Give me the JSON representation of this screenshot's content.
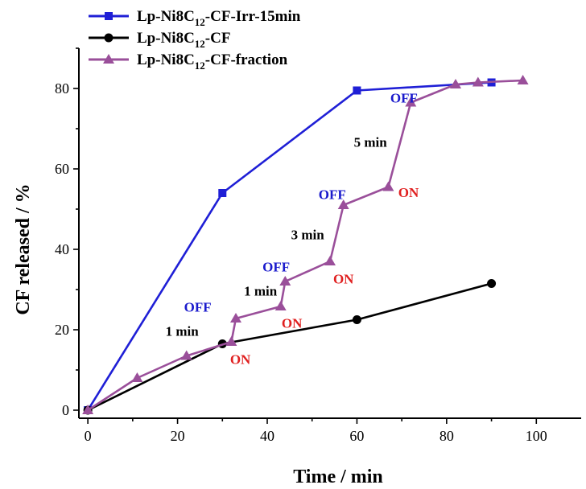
{
  "chart_data": {
    "type": "line",
    "xlabel": "Time / min",
    "ylabel": "CF released / %",
    "xlim": [
      -2,
      110
    ],
    "ylim": [
      -2,
      90
    ],
    "x_ticks": [
      0,
      20,
      40,
      60,
      80,
      100
    ],
    "y_ticks": [
      0,
      20,
      40,
      60,
      80
    ],
    "grid": false,
    "legend_position": "top-left",
    "series": [
      {
        "name_parts": [
          "Lp-Ni8C",
          "12",
          "-CF-Irr-15min"
        ],
        "color": "#1f1fd6",
        "marker": "square",
        "x": [
          0,
          30,
          60,
          90
        ],
        "y": [
          0,
          54,
          79.5,
          81.5
        ]
      },
      {
        "name_parts": [
          "Lp-Ni8C",
          "12",
          "-CF"
        ],
        "color": "#000000",
        "marker": "circle",
        "x": [
          0,
          30,
          60,
          90
        ],
        "y": [
          0,
          16.5,
          22.5,
          31.5
        ]
      },
      {
        "name_parts": [
          "Lp-Ni8C",
          "12",
          "-CF-fraction"
        ],
        "color": "#9a4f9a",
        "marker": "triangle",
        "x": [
          0,
          11,
          22,
          32,
          33,
          43,
          44,
          54,
          57,
          67,
          72,
          82,
          87,
          97
        ],
        "y": [
          0,
          8,
          13.5,
          17,
          22.8,
          25.8,
          32,
          37,
          51,
          55.5,
          76.5,
          81,
          81.5,
          82
        ]
      }
    ],
    "annotations": [
      {
        "text": "OFF",
        "color": "#1a1acc",
        "x": 24.5,
        "y": 24.5
      },
      {
        "text": "1 min",
        "color": "#000000",
        "x": 21,
        "y": 18.5
      },
      {
        "text": "ON",
        "color": "#e02020",
        "x": 34,
        "y": 11.5
      },
      {
        "text": "1 min",
        "color": "#000000",
        "x": 38.5,
        "y": 28.5
      },
      {
        "text": "OFF",
        "color": "#1a1acc",
        "x": 42,
        "y": 34.5
      },
      {
        "text": "ON",
        "color": "#e02020",
        "x": 45.5,
        "y": 20.5
      },
      {
        "text": "3 min",
        "color": "#000000",
        "x": 49,
        "y": 42.5
      },
      {
        "text": "OFF",
        "color": "#1a1acc",
        "x": 54.5,
        "y": 52.5
      },
      {
        "text": "ON",
        "color": "#e02020",
        "x": 57,
        "y": 31.5
      },
      {
        "text": "5 min",
        "color": "#000000",
        "x": 63,
        "y": 65.5
      },
      {
        "text": "OFF",
        "color": "#1a1acc",
        "x": 70.5,
        "y": 76.5
      },
      {
        "text": "ON",
        "color": "#e02020",
        "x": 71.5,
        "y": 53
      }
    ]
  }
}
